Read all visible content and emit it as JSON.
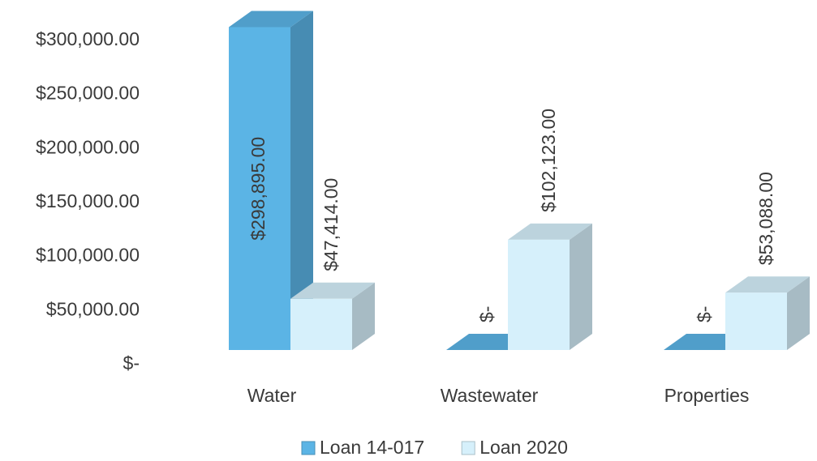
{
  "chart_data": {
    "type": "bar3d",
    "categories": [
      "Water",
      "Wastewater",
      "Properties"
    ],
    "series": [
      {
        "name": "Loan 14-017",
        "color": "#5bb4e5",
        "values": [
          298895,
          0,
          0
        ],
        "value_labels": [
          "$298,895.00",
          "$-",
          "$-"
        ]
      },
      {
        "name": "Loan 2020",
        "color": "#d6f0fb",
        "values": [
          47414,
          102123,
          53088
        ],
        "value_labels": [
          "$47,414.00",
          "$102,123.00",
          "$53,088.00"
        ]
      }
    ],
    "ylim": [
      0,
      300000
    ],
    "yticks": [
      {
        "value": 0,
        "label": "$-"
      },
      {
        "value": 50000,
        "label": "$50,000.00"
      },
      {
        "value": 100000,
        "label": "$100,000.00"
      },
      {
        "value": 150000,
        "label": "$150,000.00"
      },
      {
        "value": 200000,
        "label": "$200,000.00"
      },
      {
        "value": 250000,
        "label": "$250,000.00"
      },
      {
        "value": 300000,
        "label": "$300,000.00"
      }
    ],
    "grid": false,
    "legend": "bottom"
  }
}
